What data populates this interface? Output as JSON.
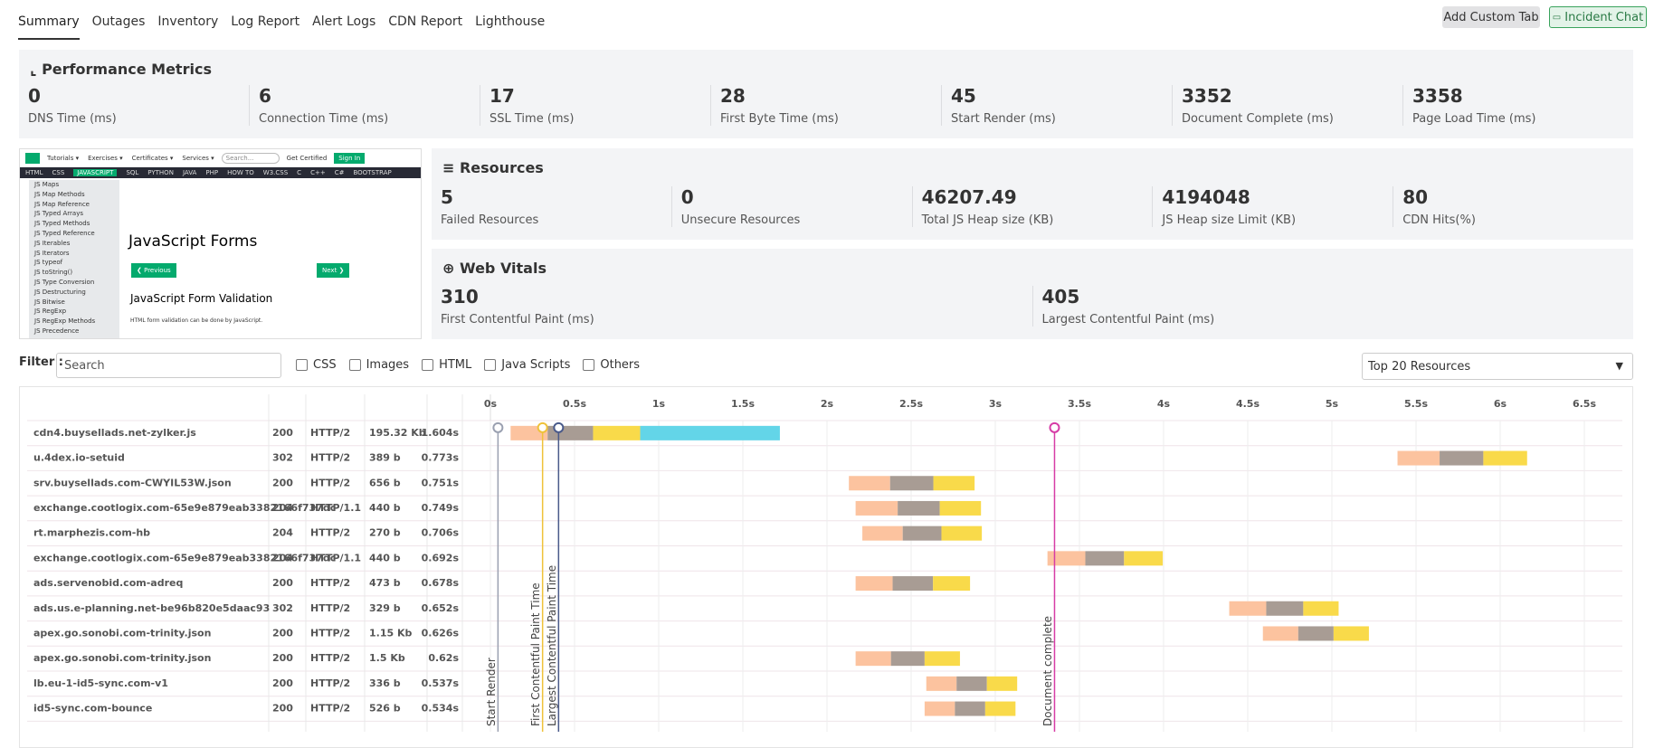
{
  "tabs": [
    "Summary",
    "Outages",
    "Inventory",
    "Log Report",
    "Alert Logs",
    "CDN Report",
    "Lighthouse"
  ],
  "buttons": [
    "Add Custom Tab",
    "Incident Chat"
  ],
  "performance": {
    "title": "Performance Metrics",
    "metrics": [
      {
        "value": 0,
        "label": "DNS Time (ms)"
      },
      {
        "value": 6,
        "label": "Connection Time (ms)"
      },
      {
        "value": 17,
        "label": "SSL Time (ms)"
      },
      {
        "value": 28,
        "label": "First Byte Time (ms)"
      },
      {
        "value": 45,
        "label": "Start Render (ms)"
      },
      {
        "value": 3352,
        "label": "Document Complete (ms)"
      },
      {
        "value": 3358,
        "label": "Page Load Time (ms)"
      }
    ]
  },
  "resources": {
    "title": "Resources",
    "metrics": [
      {
        "value": 5,
        "label": "Failed Resources"
      },
      {
        "value": 0,
        "label": "Unsecure Resources"
      },
      {
        "value": 46207.49,
        "label": "Total JS Heap size (KB)"
      },
      {
        "value": 4194048,
        "label": "JS Heap size Limit (KB)"
      },
      {
        "value": 80,
        "label": "CDN Hits(%)"
      }
    ]
  },
  "web_vitals": {
    "title": "Web Vitals",
    "metrics": [
      {
        "value": 310,
        "label": "First Contentful Paint (ms)"
      },
      {
        "value": 405,
        "label": "Largest Contentful Paint (ms)"
      }
    ]
  },
  "preview": {
    "nav": [
      "Tutorials ▾",
      "Exercises ▾",
      "Certificates ▾",
      "Services ▾"
    ],
    "search": "Search...",
    "get_certified": "Get Certified",
    "sign_in": "Sign In",
    "topics": [
      "HTML",
      "CSS",
      "JAVASCRIPT",
      "SQL",
      "PYTHON",
      "JAVA",
      "PHP",
      "HOW TO",
      "W3.CSS",
      "C",
      "C++",
      "C#",
      "BOOTSTRAP"
    ],
    "sidebar": [
      "JS Maps",
      "JS Map Methods",
      "JS Map Reference",
      "JS Typed Arrays",
      "JS Typed Methods",
      "JS Typed Reference",
      "JS Iterables",
      "JS Iterators",
      "JS typeof",
      "JS toString()",
      "JS Type Conversion",
      "JS Destructuring",
      "JS Bitwise",
      "JS RegExp",
      "JS RegExp Methods",
      "JS Precedence"
    ],
    "heading": "JavaScript Forms",
    "prev": "❮ Previous",
    "next": "Next ❯",
    "subheading": "JavaScript Form Validation",
    "text": "HTML form validation can be done by JavaScript."
  },
  "filter": {
    "label": "Filter :",
    "placeholder": "Search",
    "options": [
      "CSS",
      "Images",
      "HTML",
      "Java Scripts",
      "Others"
    ],
    "dropdown": "Top 20 Resources"
  },
  "waterfall": {
    "xlim": [
      0,
      6.5
    ],
    "xticks": [
      {
        "value": 0,
        "label": "0s"
      },
      {
        "value": 0.5,
        "label": "0.5s"
      },
      {
        "value": 1,
        "label": "1s"
      },
      {
        "value": 1.5,
        "label": "1.5s"
      },
      {
        "value": 2,
        "label": "2s"
      },
      {
        "value": 2.5,
        "label": "2.5s"
      },
      {
        "value": 3,
        "label": "3s"
      },
      {
        "value": 3.5,
        "label": "3.5s"
      },
      {
        "value": 4,
        "label": "4s"
      },
      {
        "value": 4.5,
        "label": "4.5s"
      },
      {
        "value": 5,
        "label": "5s"
      },
      {
        "value": 5.5,
        "label": "5.5s"
      },
      {
        "value": 6,
        "label": "6s"
      },
      {
        "value": 6.5,
        "label": "6.5s"
      }
    ],
    "segment_colors": [
      "#fcc39f",
      "#a89c94",
      "#f9da4a",
      "#63d5e8"
    ],
    "markers": [
      {
        "label": "Start Render",
        "value": 0.045,
        "color": "#9aa0b0"
      },
      {
        "label": "First Contentful Paint Time",
        "value": 0.31,
        "color": "#efc23a"
      },
      {
        "label": "Largest Contentful Paint Time",
        "value": 0.405,
        "color": "#4a5a8a"
      },
      {
        "label": "Document complete",
        "value": 3.352,
        "color": "#d63ca6"
      }
    ],
    "rows": [
      {
        "name": "cdn4.buysellads.net-zylker.js",
        "status": "200",
        "protocol": "HTTP/2",
        "size": "195.32 Kb",
        "time": "1.604s",
        "start": 0.12,
        "segments": [
          0.22,
          0.27,
          0.28,
          0.83
        ]
      },
      {
        "name": "u.4dex.io-setuid",
        "status": "302",
        "protocol": "HTTP/2",
        "size": "389 b",
        "time": "0.773s",
        "start": 5.39,
        "segments": [
          0.25,
          0.26,
          0.26
        ]
      },
      {
        "name": "srv.buysellads.com-CWYIL53W.json",
        "status": "200",
        "protocol": "HTTP/2",
        "size": "656 b",
        "time": "0.751s",
        "start": 2.13,
        "segments": [
          0.245,
          0.257,
          0.245
        ]
      },
      {
        "name": "exchange.cootlogix.com-65e9e879eab3382166f737dc",
        "status": "204",
        "protocol": "HTTP/1.1",
        "size": "440 b",
        "time": "0.749s",
        "start": 2.17,
        "segments": [
          0.25,
          0.25,
          0.245
        ]
      },
      {
        "name": "rt.marphezis.com-hb",
        "status": "204",
        "protocol": "HTTP/2",
        "size": "270 b",
        "time": "0.706s",
        "start": 2.21,
        "segments": [
          0.24,
          0.23,
          0.24
        ]
      },
      {
        "name": "exchange.cootlogix.com-65e9e879eab3382166f737dc",
        "status": "204",
        "protocol": "HTTP/1.1",
        "size": "440 b",
        "time": "0.692s",
        "start": 3.31,
        "segments": [
          0.225,
          0.23,
          0.23
        ]
      },
      {
        "name": "ads.servenobid.com-adreq",
        "status": "200",
        "protocol": "HTTP/2",
        "size": "473 b",
        "time": "0.678s",
        "start": 2.17,
        "segments": [
          0.22,
          0.24,
          0.22
        ]
      },
      {
        "name": "ads.us.e-planning.net-be96b820e5daac93",
        "status": "302",
        "protocol": "HTTP/2",
        "size": "329 b",
        "time": "0.652s",
        "start": 4.39,
        "segments": [
          0.22,
          0.22,
          0.21
        ]
      },
      {
        "name": "apex.go.sonobi.com-trinity.json",
        "status": "200",
        "protocol": "HTTP/2",
        "size": "1.15 Kb",
        "time": "0.626s",
        "start": 4.59,
        "segments": [
          0.21,
          0.21,
          0.21
        ]
      },
      {
        "name": "apex.go.sonobi.com-trinity.json",
        "status": "200",
        "protocol": "HTTP/2",
        "size": "1.5 Kb",
        "time": "0.62s",
        "start": 2.17,
        "segments": [
          0.21,
          0.2,
          0.21
        ]
      },
      {
        "name": "lb.eu-1-id5-sync.com-v1",
        "status": "200",
        "protocol": "HTTP/2",
        "size": "336 b",
        "time": "0.537s",
        "start": 2.59,
        "segments": [
          0.18,
          0.18,
          0.18
        ]
      },
      {
        "name": "id5-sync.com-bounce",
        "status": "200",
        "protocol": "HTTP/2",
        "size": "526 b",
        "time": "0.534s",
        "start": 2.58,
        "segments": [
          0.18,
          0.18,
          0.18
        ]
      }
    ]
  }
}
